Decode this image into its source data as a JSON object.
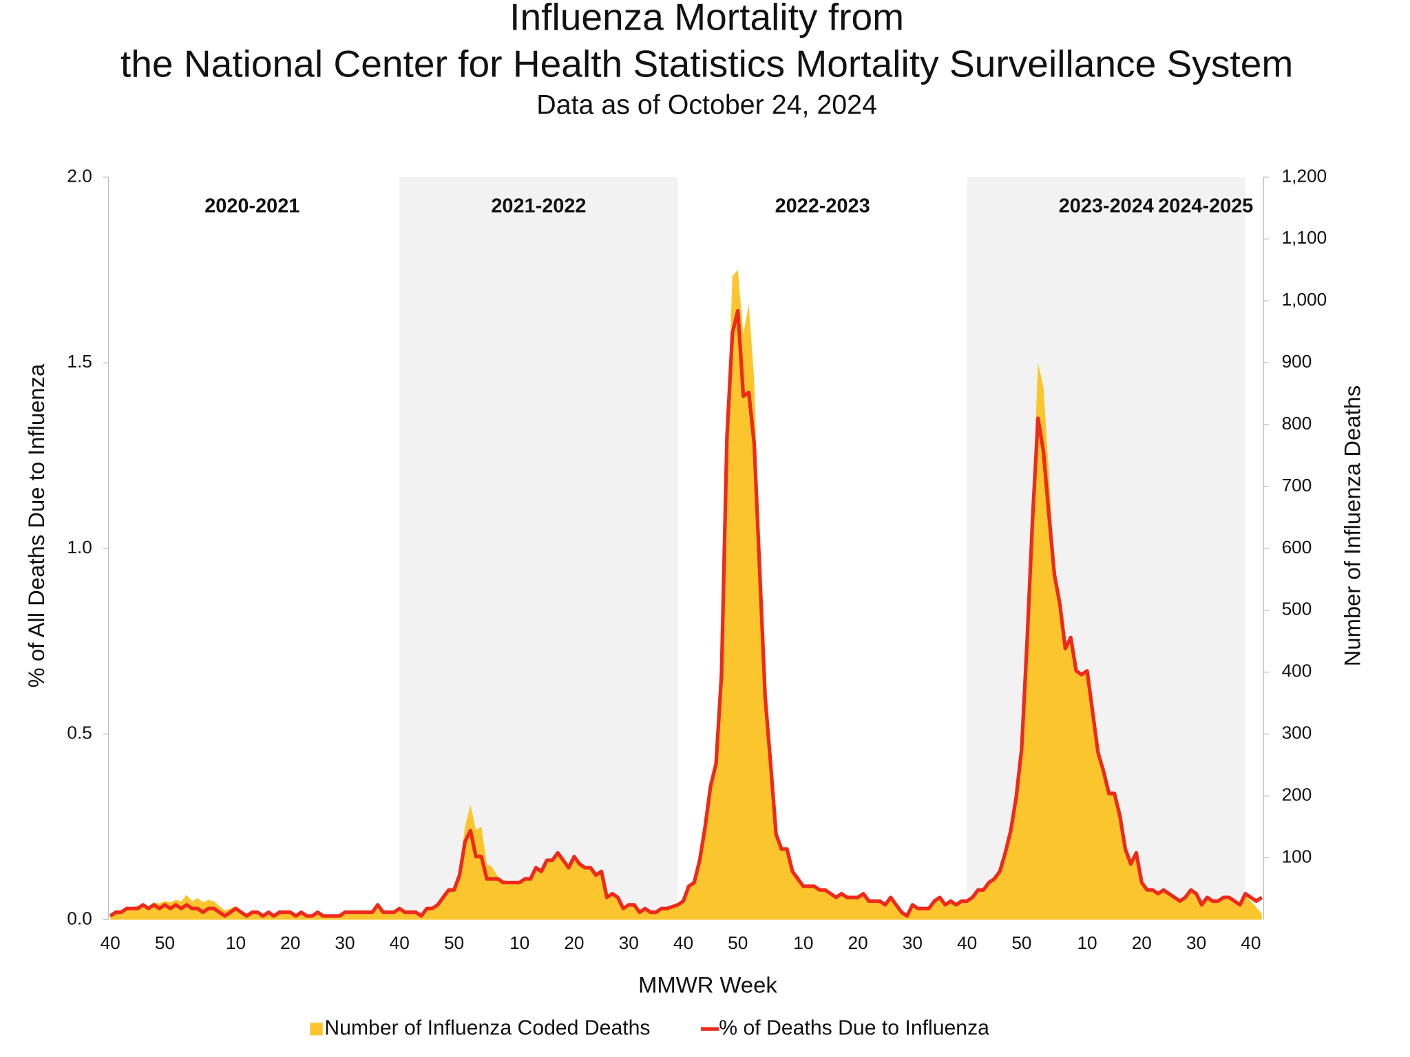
{
  "chart_data": {
    "type": "combo",
    "title": [
      "Influenza Mortality from",
      "the National Center for Health Statistics Mortality Surveillance System"
    ],
    "subtitle": "Data as of October 24, 2024",
    "xlabel": "MMWR Week",
    "ylabel": "% of All Deaths Due to Influenza",
    "y2label": "Number of Influenza Deaths",
    "seasons": [
      "2020-2021",
      "2021-2022",
      "2022-2023",
      "2023-2024",
      "2024-2025"
    ],
    "season_shade": "#f2f2f3",
    "legend": "bottom",
    "categories": [
      "40",
      null,
      null,
      null,
      null,
      null,
      null,
      null,
      null,
      null,
      "50",
      null,
      null,
      null,
      null,
      null,
      null,
      null,
      null,
      null,
      null,
      null,
      null,
      "10",
      null,
      null,
      null,
      null,
      null,
      null,
      null,
      null,
      null,
      "20",
      null,
      null,
      null,
      null,
      null,
      null,
      null,
      null,
      null,
      "30",
      null,
      null,
      null,
      null,
      null,
      null,
      null,
      null,
      null,
      "40",
      null,
      null,
      null,
      null,
      null,
      null,
      null,
      null,
      null,
      "50",
      null,
      null,
      null,
      null,
      null,
      null,
      null,
      null,
      null,
      null,
      null,
      "10",
      null,
      null,
      null,
      null,
      null,
      null,
      null,
      null,
      null,
      "20",
      null,
      null,
      null,
      null,
      null,
      null,
      null,
      null,
      null,
      "30",
      null,
      null,
      null,
      null,
      null,
      null,
      null,
      null,
      null,
      "40",
      null,
      null,
      null,
      null,
      null,
      null,
      null,
      null,
      null,
      "50",
      null,
      null,
      null,
      null,
      null,
      null,
      null,
      null,
      null,
      null,
      null,
      "10",
      null,
      null,
      null,
      null,
      null,
      null,
      null,
      null,
      null,
      "20",
      null,
      null,
      null,
      null,
      null,
      null,
      null,
      null,
      null,
      "30",
      null,
      null,
      null,
      null,
      null,
      null,
      null,
      null,
      null,
      "40",
      null,
      null,
      null,
      null,
      null,
      null,
      null,
      null,
      null,
      "50",
      null,
      null,
      null,
      null,
      null,
      null,
      null,
      null,
      null,
      null,
      null,
      "10",
      null,
      null,
      null,
      null,
      null,
      null,
      null,
      null,
      null,
      "20",
      null,
      null,
      null,
      null,
      null,
      null,
      null,
      null,
      null,
      "30",
      null,
      null,
      null,
      null,
      null,
      null,
      null,
      null,
      null,
      "40",
      null,
      null
    ],
    "ylim": [
      0,
      2
    ],
    "yticks": [
      {
        "value": 0,
        "label": "0.0"
      },
      0.5,
      {
        "value": 1,
        "label": "1.0"
      },
      1.5,
      {
        "value": 2,
        "label": "2.0"
      }
    ],
    "y2lim": [
      0,
      1200
    ],
    "y2ticks": [
      100,
      200,
      300,
      400,
      500,
      600,
      700,
      800,
      900,
      {
        "value": 1000,
        "label": "1,000"
      },
      {
        "value": 1100,
        "label": "1,100"
      },
      {
        "value": 1200,
        "label": "1,200"
      }
    ],
    "series": [
      {
        "name": "Number of Influenza Coded Deaths",
        "type": "area",
        "axis": "y2",
        "color": "#fbc52d",
        "values": [
          8,
          12,
          14,
          18,
          20,
          22,
          25,
          22,
          28,
          26,
          30,
          28,
          32,
          30,
          40,
          30,
          35,
          28,
          32,
          30,
          22,
          15,
          18,
          22,
          15,
          10,
          14,
          15,
          8,
          12,
          8,
          12,
          12,
          12,
          8,
          12,
          8,
          8,
          12,
          8,
          8,
          8,
          8,
          12,
          12,
          12,
          12,
          12,
          14,
          22,
          14,
          14,
          14,
          16,
          12,
          12,
          12,
          8,
          16,
          18,
          24,
          36,
          48,
          52,
          80,
          150,
          186,
          145,
          150,
          90,
          85,
          70,
          64,
          62,
          60,
          62,
          66,
          66,
          85,
          80,
          96,
          98,
          110,
          98,
          88,
          104,
          92,
          86,
          85,
          74,
          78,
          38,
          42,
          36,
          20,
          24,
          24,
          12,
          18,
          12,
          12,
          18,
          18,
          20,
          24,
          30,
          55,
          60,
          100,
          155,
          220,
          255,
          400,
          780,
          1040,
          1050,
          945,
          995,
          870,
          570,
          370,
          250,
          140,
          115,
          112,
          80,
          66,
          55,
          55,
          55,
          48,
          48,
          42,
          36,
          42,
          36,
          36,
          36,
          42,
          30,
          30,
          30,
          24,
          36,
          24,
          12,
          8,
          24,
          18,
          18,
          18,
          30,
          36,
          24,
          30,
          24,
          30,
          30,
          36,
          48,
          48,
          60,
          66,
          80,
          110,
          145,
          200,
          280,
          460,
          680,
          900,
          860,
          720,
          570,
          510,
          440,
          450,
          400,
          395,
          400,
          340,
          270,
          240,
          205,
          205,
          170,
          115,
          90,
          105,
          60,
          48,
          48,
          42,
          48,
          42,
          36,
          30,
          36,
          48,
          42,
          24,
          36,
          30,
          30,
          36,
          36,
          30,
          24,
          40,
          30,
          20,
          10
        ]
      },
      {
        "name": "% of Deaths Due to Influenza",
        "type": "line",
        "axis": "y",
        "color": "#ee2a1b",
        "values": [
          0.01,
          0.02,
          0.02,
          0.03,
          0.03,
          0.03,
          0.04,
          0.03,
          0.04,
          0.03,
          0.04,
          0.03,
          0.04,
          0.03,
          0.04,
          0.03,
          0.03,
          0.02,
          0.03,
          0.03,
          0.02,
          0.01,
          0.02,
          0.03,
          0.02,
          0.01,
          0.02,
          0.02,
          0.01,
          0.02,
          0.01,
          0.02,
          0.02,
          0.02,
          0.01,
          0.02,
          0.01,
          0.01,
          0.02,
          0.01,
          0.01,
          0.01,
          0.01,
          0.02,
          0.02,
          0.02,
          0.02,
          0.02,
          0.02,
          0.04,
          0.02,
          0.02,
          0.02,
          0.03,
          0.02,
          0.02,
          0.02,
          0.01,
          0.03,
          0.03,
          0.04,
          0.06,
          0.08,
          0.08,
          0.12,
          0.21,
          0.24,
          0.17,
          0.17,
          0.11,
          0.11,
          0.11,
          0.1,
          0.1,
          0.1,
          0.1,
          0.11,
          0.11,
          0.14,
          0.13,
          0.16,
          0.16,
          0.18,
          0.16,
          0.14,
          0.17,
          0.15,
          0.14,
          0.14,
          0.12,
          0.13,
          0.06,
          0.07,
          0.06,
          0.03,
          0.04,
          0.04,
          0.02,
          0.03,
          0.02,
          0.02,
          0.03,
          0.03,
          0.035,
          0.04,
          0.05,
          0.09,
          0.1,
          0.16,
          0.25,
          0.36,
          0.42,
          0.66,
          1.3,
          1.58,
          1.64,
          1.41,
          1.42,
          1.28,
          0.94,
          0.6,
          0.42,
          0.23,
          0.19,
          0.19,
          0.13,
          0.11,
          0.09,
          0.09,
          0.09,
          0.08,
          0.08,
          0.07,
          0.06,
          0.07,
          0.06,
          0.06,
          0.06,
          0.07,
          0.05,
          0.05,
          0.05,
          0.04,
          0.06,
          0.04,
          0.02,
          0.01,
          0.04,
          0.03,
          0.03,
          0.03,
          0.05,
          0.06,
          0.04,
          0.05,
          0.04,
          0.05,
          0.05,
          0.06,
          0.08,
          0.08,
          0.1,
          0.11,
          0.13,
          0.18,
          0.24,
          0.33,
          0.46,
          0.75,
          1.08,
          1.35,
          1.26,
          1.09,
          0.93,
          0.85,
          0.73,
          0.76,
          0.67,
          0.66,
          0.67,
          0.56,
          0.45,
          0.4,
          0.34,
          0.34,
          0.28,
          0.19,
          0.15,
          0.18,
          0.1,
          0.08,
          0.08,
          0.07,
          0.08,
          0.07,
          0.06,
          0.05,
          0.06,
          0.08,
          0.07,
          0.04,
          0.06,
          0.05,
          0.05,
          0.06,
          0.06,
          0.05,
          0.04,
          0.07,
          0.06,
          0.05,
          0.06
        ]
      }
    ]
  }
}
